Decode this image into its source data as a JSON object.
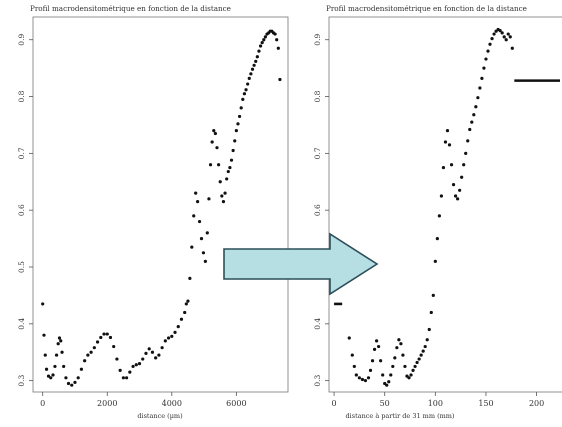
{
  "chart_data": [
    {
      "type": "scatter",
      "title": "Profil macrodensitométrique en fonction de la distance",
      "xlabel": "distance (µm)",
      "ylabel": "",
      "xlim": [
        -300,
        7600
      ],
      "ylim": [
        0.28,
        0.94
      ],
      "xticks": [
        0,
        2000,
        4000,
        6000
      ],
      "yticks": [
        0.3,
        0.4,
        0.5,
        0.6,
        0.7,
        0.8,
        0.9
      ],
      "series": [
        {
          "points": [
            [
              0,
              0.435
            ],
            [
              40,
              0.38
            ],
            [
              80,
              0.345
            ],
            [
              120,
              0.32
            ],
            [
              180,
              0.308
            ],
            [
              250,
              0.305
            ],
            [
              320,
              0.31
            ],
            [
              380,
              0.325
            ],
            [
              430,
              0.345
            ],
            [
              480,
              0.365
            ],
            [
              520,
              0.375
            ],
            [
              560,
              0.37
            ],
            [
              600,
              0.35
            ],
            [
              650,
              0.325
            ],
            [
              720,
              0.305
            ],
            [
              800,
              0.295
            ],
            [
              900,
              0.292
            ],
            [
              1000,
              0.297
            ],
            [
              1100,
              0.305
            ],
            [
              1200,
              0.32
            ],
            [
              1300,
              0.335
            ],
            [
              1400,
              0.345
            ],
            [
              1500,
              0.35
            ],
            [
              1600,
              0.358
            ],
            [
              1700,
              0.368
            ],
            [
              1800,
              0.376
            ],
            [
              1900,
              0.382
            ],
            [
              2000,
              0.382
            ],
            [
              2100,
              0.376
            ],
            [
              2200,
              0.36
            ],
            [
              2300,
              0.338
            ],
            [
              2400,
              0.318
            ],
            [
              2500,
              0.305
            ],
            [
              2600,
              0.305
            ],
            [
              2700,
              0.315
            ],
            [
              2800,
              0.325
            ],
            [
              2900,
              0.328
            ],
            [
              3000,
              0.33
            ],
            [
              3100,
              0.338
            ],
            [
              3200,
              0.348
            ],
            [
              3300,
              0.356
            ],
            [
              3400,
              0.35
            ],
            [
              3500,
              0.34
            ],
            [
              3600,
              0.345
            ],
            [
              3700,
              0.358
            ],
            [
              3800,
              0.37
            ],
            [
              3900,
              0.375
            ],
            [
              4000,
              0.378
            ],
            [
              4100,
              0.385
            ],
            [
              4200,
              0.395
            ],
            [
              4300,
              0.408
            ],
            [
              4400,
              0.42
            ],
            [
              4450,
              0.435
            ],
            [
              4500,
              0.44
            ],
            [
              4560,
              0.48
            ],
            [
              4620,
              0.535
            ],
            [
              4680,
              0.59
            ],
            [
              4740,
              0.63
            ],
            [
              4800,
              0.615
            ],
            [
              4860,
              0.58
            ],
            [
              4920,
              0.55
            ],
            [
              4980,
              0.525
            ],
            [
              5040,
              0.51
            ],
            [
              5100,
              0.56
            ],
            [
              5150,
              0.62
            ],
            [
              5200,
              0.68
            ],
            [
              5250,
              0.72
            ],
            [
              5300,
              0.74
            ],
            [
              5350,
              0.735
            ],
            [
              5400,
              0.71
            ],
            [
              5450,
              0.68
            ],
            [
              5500,
              0.65
            ],
            [
              5550,
              0.625
            ],
            [
              5600,
              0.615
            ],
            [
              5650,
              0.63
            ],
            [
              5700,
              0.655
            ],
            [
              5750,
              0.668
            ],
            [
              5800,
              0.675
            ],
            [
              5850,
              0.688
            ],
            [
              5900,
              0.705
            ],
            [
              5950,
              0.722
            ],
            [
              6000,
              0.74
            ],
            [
              6050,
              0.752
            ],
            [
              6100,
              0.765
            ],
            [
              6150,
              0.78
            ],
            [
              6200,
              0.795
            ],
            [
              6250,
              0.805
            ],
            [
              6300,
              0.812
            ],
            [
              6350,
              0.822
            ],
            [
              6400,
              0.832
            ],
            [
              6450,
              0.84
            ],
            [
              6500,
              0.848
            ],
            [
              6550,
              0.855
            ],
            [
              6600,
              0.862
            ],
            [
              6650,
              0.87
            ],
            [
              6700,
              0.88
            ],
            [
              6750,
              0.889
            ],
            [
              6800,
              0.895
            ],
            [
              6850,
              0.9
            ],
            [
              6900,
              0.905
            ],
            [
              6950,
              0.91
            ],
            [
              7000,
              0.912
            ],
            [
              7050,
              0.915
            ],
            [
              7100,
              0.915
            ],
            [
              7150,
              0.912
            ],
            [
              7200,
              0.91
            ],
            [
              7250,
              0.9
            ],
            [
              7300,
              0.885
            ],
            [
              7350,
              0.83
            ]
          ]
        }
      ]
    },
    {
      "type": "scatter",
      "title": "Profil macrodensitométrique en fonction de la distance",
      "xlabel": "distance à partir de 31 mm (mm)",
      "ylabel": "",
      "xlim": [
        -5,
        232
      ],
      "ylim": [
        0.28,
        0.94
      ],
      "xticks": [
        0,
        50,
        100,
        150,
        200
      ],
      "yticks": [
        0.3,
        0.4,
        0.5,
        0.6,
        0.7,
        0.8,
        0.9
      ],
      "reference_lines": [
        {
          "x": [
            0,
            8
          ],
          "y": 0.435
        },
        {
          "x": [
            178,
            232
          ],
          "y": 0.828
        }
      ],
      "series": [
        {
          "points": [
            [
              15,
              0.375
            ],
            [
              18,
              0.345
            ],
            [
              20,
              0.325
            ],
            [
              22,
              0.31
            ],
            [
              25,
              0.305
            ],
            [
              28,
              0.302
            ],
            [
              31,
              0.3
            ],
            [
              34,
              0.305
            ],
            [
              36,
              0.318
            ],
            [
              38,
              0.335
            ],
            [
              40,
              0.355
            ],
            [
              42,
              0.37
            ],
            [
              44,
              0.36
            ],
            [
              46,
              0.335
            ],
            [
              48,
              0.31
            ],
            [
              50,
              0.295
            ],
            [
              52,
              0.292
            ],
            [
              54,
              0.298
            ],
            [
              56,
              0.31
            ],
            [
              58,
              0.325
            ],
            [
              60,
              0.34
            ],
            [
              62,
              0.358
            ],
            [
              64,
              0.372
            ],
            [
              66,
              0.365
            ],
            [
              68,
              0.345
            ],
            [
              70,
              0.325
            ],
            [
              72,
              0.308
            ],
            [
              74,
              0.305
            ],
            [
              76,
              0.31
            ],
            [
              78,
              0.318
            ],
            [
              80,
              0.325
            ],
            [
              82,
              0.332
            ],
            [
              84,
              0.338
            ],
            [
              86,
              0.345
            ],
            [
              88,
              0.352
            ],
            [
              90,
              0.36
            ],
            [
              92,
              0.372
            ],
            [
              94,
              0.39
            ],
            [
              96,
              0.42
            ],
            [
              98,
              0.45
            ],
            [
              100,
              0.51
            ],
            [
              102,
              0.55
            ],
            [
              104,
              0.59
            ],
            [
              106,
              0.625
            ],
            [
              108,
              0.675
            ],
            [
              110,
              0.72
            ],
            [
              112,
              0.74
            ],
            [
              114,
              0.715
            ],
            [
              116,
              0.68
            ],
            [
              118,
              0.645
            ],
            [
              120,
              0.625
            ],
            [
              122,
              0.62
            ],
            [
              124,
              0.635
            ],
            [
              126,
              0.658
            ],
            [
              128,
              0.68
            ],
            [
              130,
              0.7
            ],
            [
              132,
              0.722
            ],
            [
              134,
              0.742
            ],
            [
              136,
              0.755
            ],
            [
              138,
              0.768
            ],
            [
              140,
              0.782
            ],
            [
              142,
              0.798
            ],
            [
              144,
              0.815
            ],
            [
              146,
              0.832
            ],
            [
              148,
              0.85
            ],
            [
              150,
              0.866
            ],
            [
              152,
              0.88
            ],
            [
              154,
              0.892
            ],
            [
              156,
              0.902
            ],
            [
              158,
              0.91
            ],
            [
              160,
              0.915
            ],
            [
              162,
              0.918
            ],
            [
              164,
              0.916
            ],
            [
              166,
              0.912
            ],
            [
              168,
              0.905
            ],
            [
              170,
              0.9
            ],
            [
              172,
              0.91
            ],
            [
              174,
              0.905
            ],
            [
              176,
              0.885
            ]
          ]
        }
      ]
    }
  ],
  "arrow": {
    "color": "#b5dfe3",
    "outline": "#2d4f59"
  },
  "page_background": "#ffffff"
}
